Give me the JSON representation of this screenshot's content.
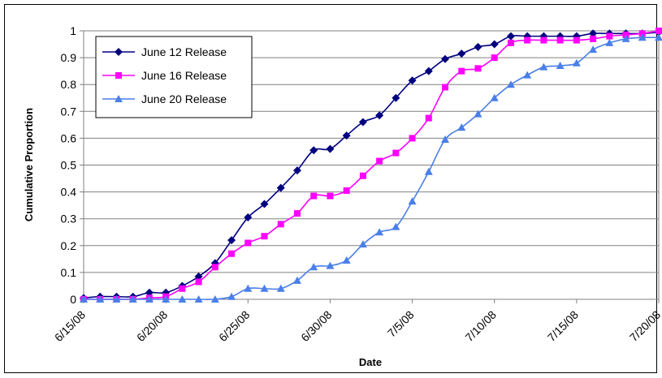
{
  "chart_data": {
    "type": "line",
    "title": "",
    "xlabel": "Date",
    "ylabel": "Cumulative Proportion",
    "ylim": [
      0,
      1
    ],
    "y_ticks": [
      "0",
      "0.1",
      "0.2",
      "0.3",
      "0.4",
      "0.5",
      "0.6",
      "0.7",
      "0.8",
      "0.9",
      "1"
    ],
    "x_ticks": [
      "6/15/08",
      "6/20/08",
      "6/25/08",
      "6/30/08",
      "7/5/08",
      "7/10/08",
      "7/15/08",
      "7/20/08"
    ],
    "x_range": [
      "6/15/08",
      "7/20/08"
    ],
    "grid": "horizontal",
    "legend_position": "top-left",
    "x": [
      "6/15/08",
      "6/16/08",
      "6/17/08",
      "6/18/08",
      "6/19/08",
      "6/20/08",
      "6/21/08",
      "6/22/08",
      "6/23/08",
      "6/24/08",
      "6/25/08",
      "6/26/08",
      "6/27/08",
      "6/28/08",
      "6/29/08",
      "6/30/08",
      "7/1/08",
      "7/2/08",
      "7/3/08",
      "7/4/08",
      "7/5/08",
      "7/6/08",
      "7/7/08",
      "7/8/08",
      "7/9/08",
      "7/10/08",
      "7/11/08",
      "7/12/08",
      "7/13/08",
      "7/14/08",
      "7/15/08",
      "7/16/08",
      "7/17/08",
      "7/18/08",
      "7/19/08",
      "7/20/08"
    ],
    "series": [
      {
        "name": "June 12 Release",
        "color": "#000080",
        "marker": "diamond",
        "values": [
          0.005,
          0.01,
          0.01,
          0.01,
          0.025,
          0.025,
          0.05,
          0.085,
          0.135,
          0.22,
          0.305,
          0.355,
          0.415,
          0.48,
          0.555,
          0.56,
          0.61,
          0.66,
          0.685,
          0.75,
          0.815,
          0.85,
          0.895,
          0.915,
          0.94,
          0.95,
          0.98,
          0.98,
          0.98,
          0.98,
          0.98,
          0.99,
          0.99,
          0.99,
          0.99,
          0.995
        ]
      },
      {
        "name": "June 16 Release",
        "color": "#ff00ff",
        "marker": "square",
        "values": [
          0.0,
          0.0,
          0.0,
          0.0,
          0.005,
          0.01,
          0.04,
          0.065,
          0.12,
          0.17,
          0.21,
          0.235,
          0.28,
          0.32,
          0.385,
          0.385,
          0.405,
          0.46,
          0.515,
          0.545,
          0.6,
          0.675,
          0.79,
          0.85,
          0.86,
          0.9,
          0.955,
          0.965,
          0.965,
          0.965,
          0.965,
          0.97,
          0.98,
          0.985,
          0.99,
          1.0
        ]
      },
      {
        "name": "June 20 Release",
        "color": "#4a7fe8",
        "marker": "triangle",
        "values": [
          0.0,
          0.0,
          0.0,
          0.0,
          0.0,
          0.0,
          0.0,
          0.0,
          0.0,
          0.01,
          0.04,
          0.04,
          0.04,
          0.07,
          0.12,
          0.125,
          0.145,
          0.205,
          0.25,
          0.27,
          0.365,
          0.475,
          0.595,
          0.64,
          0.69,
          0.75,
          0.8,
          0.835,
          0.865,
          0.87,
          0.88,
          0.93,
          0.955,
          0.97,
          0.975,
          0.975
        ]
      }
    ]
  }
}
